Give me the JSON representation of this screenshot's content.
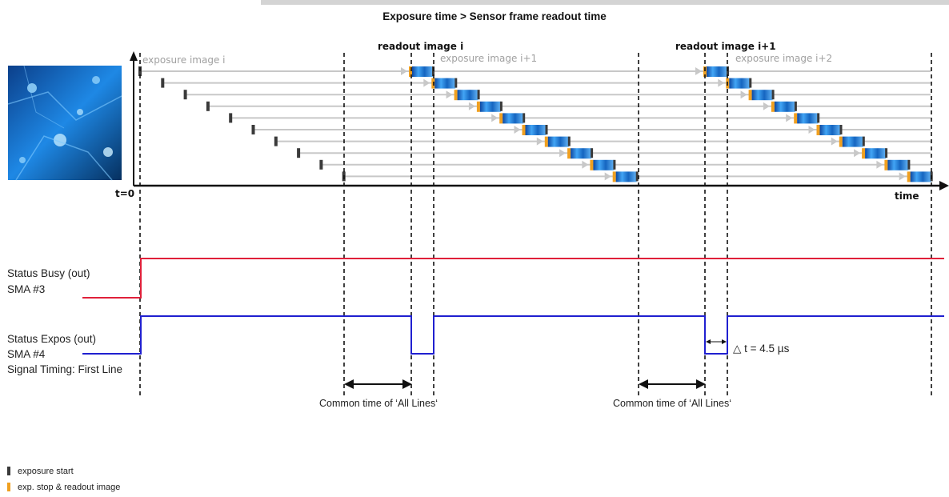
{
  "title": "Exposure time > Sensor frame readout time",
  "phases": {
    "exposure_1": "exposure image i",
    "readout_1": "readout image i",
    "exposure_2": "exposure image i+1",
    "readout_2": "readout image i+1",
    "exposure_3": "exposure image i+2"
  },
  "axis": {
    "origin": "t=0",
    "time": "time"
  },
  "signals": {
    "busy": {
      "line1": "Status Busy (out)",
      "line2": "SMA #3",
      "color": "#e0203a"
    },
    "expos": {
      "line1": "Status Expos (out)",
      "line2": "SMA #4",
      "line3": "Signal Timing: First Line",
      "color": "#2020d0"
    }
  },
  "delta": "△ t = 4.5 µs",
  "common_time_label_1": "Common time of ‘All Lines‘",
  "common_time_label_2": "Common time of ‘All Lines‘",
  "legend": {
    "exposure_start": {
      "label": "exposure start",
      "color": "#3a3a3a"
    },
    "readout": {
      "label": "exp. stop & readout image",
      "color": "#f0a020"
    }
  },
  "colors": {
    "row_line": "#c8c8c8",
    "readout_image": "#1a7ad0"
  }
}
